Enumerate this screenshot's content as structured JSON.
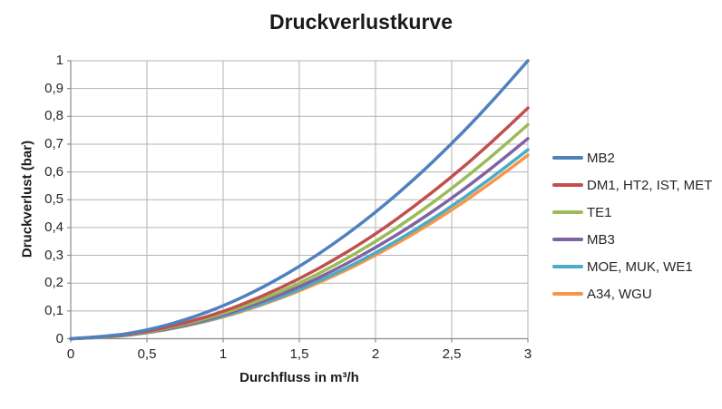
{
  "chart_data": {
    "type": "line",
    "title": "Druckverlustkurve",
    "xlabel": "Durchfluss in m³/h",
    "ylabel": "Druckverlust (bar)",
    "xlim": [
      0,
      3
    ],
    "ylim": [
      0,
      1
    ],
    "grid": true,
    "legend_position": "right",
    "grid_color": "#b3b3b3",
    "axis_color": "#8c8c8c",
    "text_color": "#262626",
    "x_ticks": [
      {
        "value": 0,
        "label": "0"
      },
      {
        "value": 0.5,
        "label": "0,5"
      },
      {
        "value": 1,
        "label": "1"
      },
      {
        "value": 1.5,
        "label": "1,5"
      },
      {
        "value": 2,
        "label": "2"
      },
      {
        "value": 2.5,
        "label": "2,5"
      },
      {
        "value": 3,
        "label": "3"
      }
    ],
    "y_ticks": [
      {
        "value": 0,
        "label": "0"
      },
      {
        "value": 0.1,
        "label": "0,1"
      },
      {
        "value": 0.2,
        "label": "0,2"
      },
      {
        "value": 0.3,
        "label": "0,3"
      },
      {
        "value": 0.4,
        "label": "0,4"
      },
      {
        "value": 0.5,
        "label": "0,5"
      },
      {
        "value": 0.6,
        "label": "0,6"
      },
      {
        "value": 0.7,
        "label": "0,7"
      },
      {
        "value": 0.8,
        "label": "0,8"
      },
      {
        "value": 0.9,
        "label": "0,9"
      },
      {
        "value": 1,
        "label": "1"
      }
    ],
    "x": [
      0,
      0.25,
      0.5,
      0.75,
      1,
      1.25,
      1.5,
      1.75,
      2,
      2.25,
      2.5,
      2.75,
      3
    ],
    "series": [
      {
        "name": "MB2",
        "color": "#4F81BD",
        "values": [
          0,
          0.008,
          0.03,
          0.067,
          0.117,
          0.181,
          0.259,
          0.35,
          0.454,
          0.571,
          0.701,
          0.844,
          1.0
        ]
      },
      {
        "name": "DM1, HT2, IST, MET",
        "color": "#C0504D",
        "values": [
          0,
          0.007,
          0.025,
          0.056,
          0.097,
          0.151,
          0.215,
          0.29,
          0.376,
          0.474,
          0.582,
          0.7,
          0.83
        ]
      },
      {
        "name": "TE1",
        "color": "#9BBB59",
        "values": [
          0,
          0.006,
          0.023,
          0.052,
          0.09,
          0.14,
          0.199,
          0.269,
          0.349,
          0.439,
          0.54,
          0.65,
          0.77
        ]
      },
      {
        "name": "MB3",
        "color": "#8064A2",
        "values": [
          0,
          0.006,
          0.022,
          0.048,
          0.085,
          0.131,
          0.186,
          0.252,
          0.327,
          0.411,
          0.505,
          0.608,
          0.72
        ]
      },
      {
        "name": "MOE, MUK, WE1",
        "color": "#4BACC6",
        "values": [
          0,
          0.005,
          0.021,
          0.046,
          0.08,
          0.123,
          0.176,
          0.238,
          0.308,
          0.388,
          0.476,
          0.574,
          0.68
        ]
      },
      {
        "name": "A34, WGU",
        "color": "#F79646",
        "values": [
          0,
          0.005,
          0.02,
          0.044,
          0.077,
          0.12,
          0.171,
          0.231,
          0.299,
          0.377,
          0.462,
          0.557,
          0.66
        ]
      }
    ]
  }
}
